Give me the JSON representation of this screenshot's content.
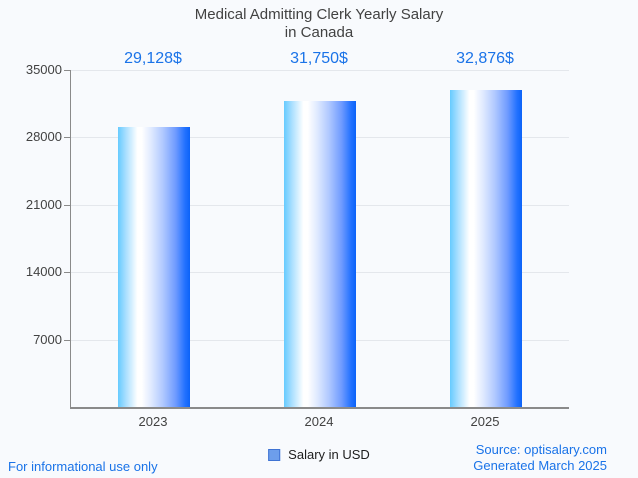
{
  "title": {
    "line1": "Medical Admitting Clerk Yearly Salary",
    "line2": "in Canada"
  },
  "chart_data": {
    "type": "bar",
    "title": "Medical Admitting Clerk Yearly Salary in Canada",
    "categories": [
      "2023",
      "2024",
      "2025"
    ],
    "values": [
      29128,
      31750,
      32876
    ],
    "value_labels": [
      "29,128$",
      "31,750$",
      "32,876$"
    ],
    "series": [
      {
        "name": "Salary in USD",
        "values": [
          29128,
          31750,
          32876
        ]
      }
    ],
    "xlabel": "",
    "ylabel": "",
    "ylim": [
      0,
      35000
    ],
    "yticks": [
      7000,
      14000,
      21000,
      28000,
      35000
    ],
    "grid": true,
    "legend_position": "bottom",
    "colors": {
      "value_label": "#1a73e8",
      "bar_gradient_left": "#66cbff",
      "bar_gradient_mid": "#ffffff",
      "bar_gradient_right": "#0b62f8",
      "axis_text": "#424242",
      "gridline": "#e4e7ec",
      "background": "#f8fafd"
    }
  },
  "legend": {
    "label": "Salary in USD",
    "swatch_fill": "#6d9eeb",
    "swatch_border": "#3f73d3"
  },
  "footer": {
    "disclaimer": "For informational use only",
    "source": "Source: optisalary.com",
    "generated": "Generated March 2025",
    "link_color": "#1a73e8"
  }
}
